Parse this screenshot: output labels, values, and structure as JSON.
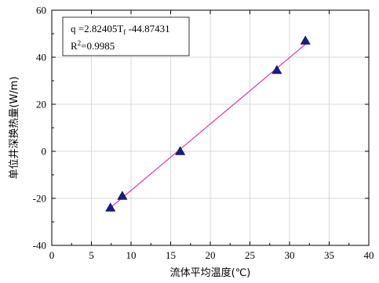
{
  "chart_data": {
    "type": "scatter",
    "title": "",
    "xlabel": "流体平均温度(℃)",
    "ylabel": "单位井深换热量(W/m)",
    "xlim": [
      0,
      40
    ],
    "ylim": [
      -40,
      60
    ],
    "x_ticks": [
      0,
      5,
      10,
      15,
      20,
      25,
      30,
      35,
      40
    ],
    "y_ticks": [
      -40,
      -20,
      0,
      20,
      40,
      60
    ],
    "grid": true,
    "series": [
      {
        "marker": "triangle",
        "color": "#1a1a8c",
        "points": [
          {
            "x": 7.4,
            "y": -24.0
          },
          {
            "x": 8.9,
            "y": -19.0
          },
          {
            "x": 16.2,
            "y": 0.0
          },
          {
            "x": 28.4,
            "y": 34.5
          },
          {
            "x": 32.0,
            "y": 47.0
          }
        ]
      }
    ],
    "fit_line": {
      "color": "#e040a0",
      "slope": 2.82405,
      "intercept": -44.87431,
      "x_range": [
        7.4,
        32.0
      ]
    },
    "legend": {
      "position": "top-left",
      "line1_prefix": "q  =2.82405T",
      "line1_sub": "f",
      "line1_suffix": " -44.87431",
      "line2_prefix": "R",
      "line2_sup": "2",
      "line2_suffix": "=0.9985"
    }
  }
}
